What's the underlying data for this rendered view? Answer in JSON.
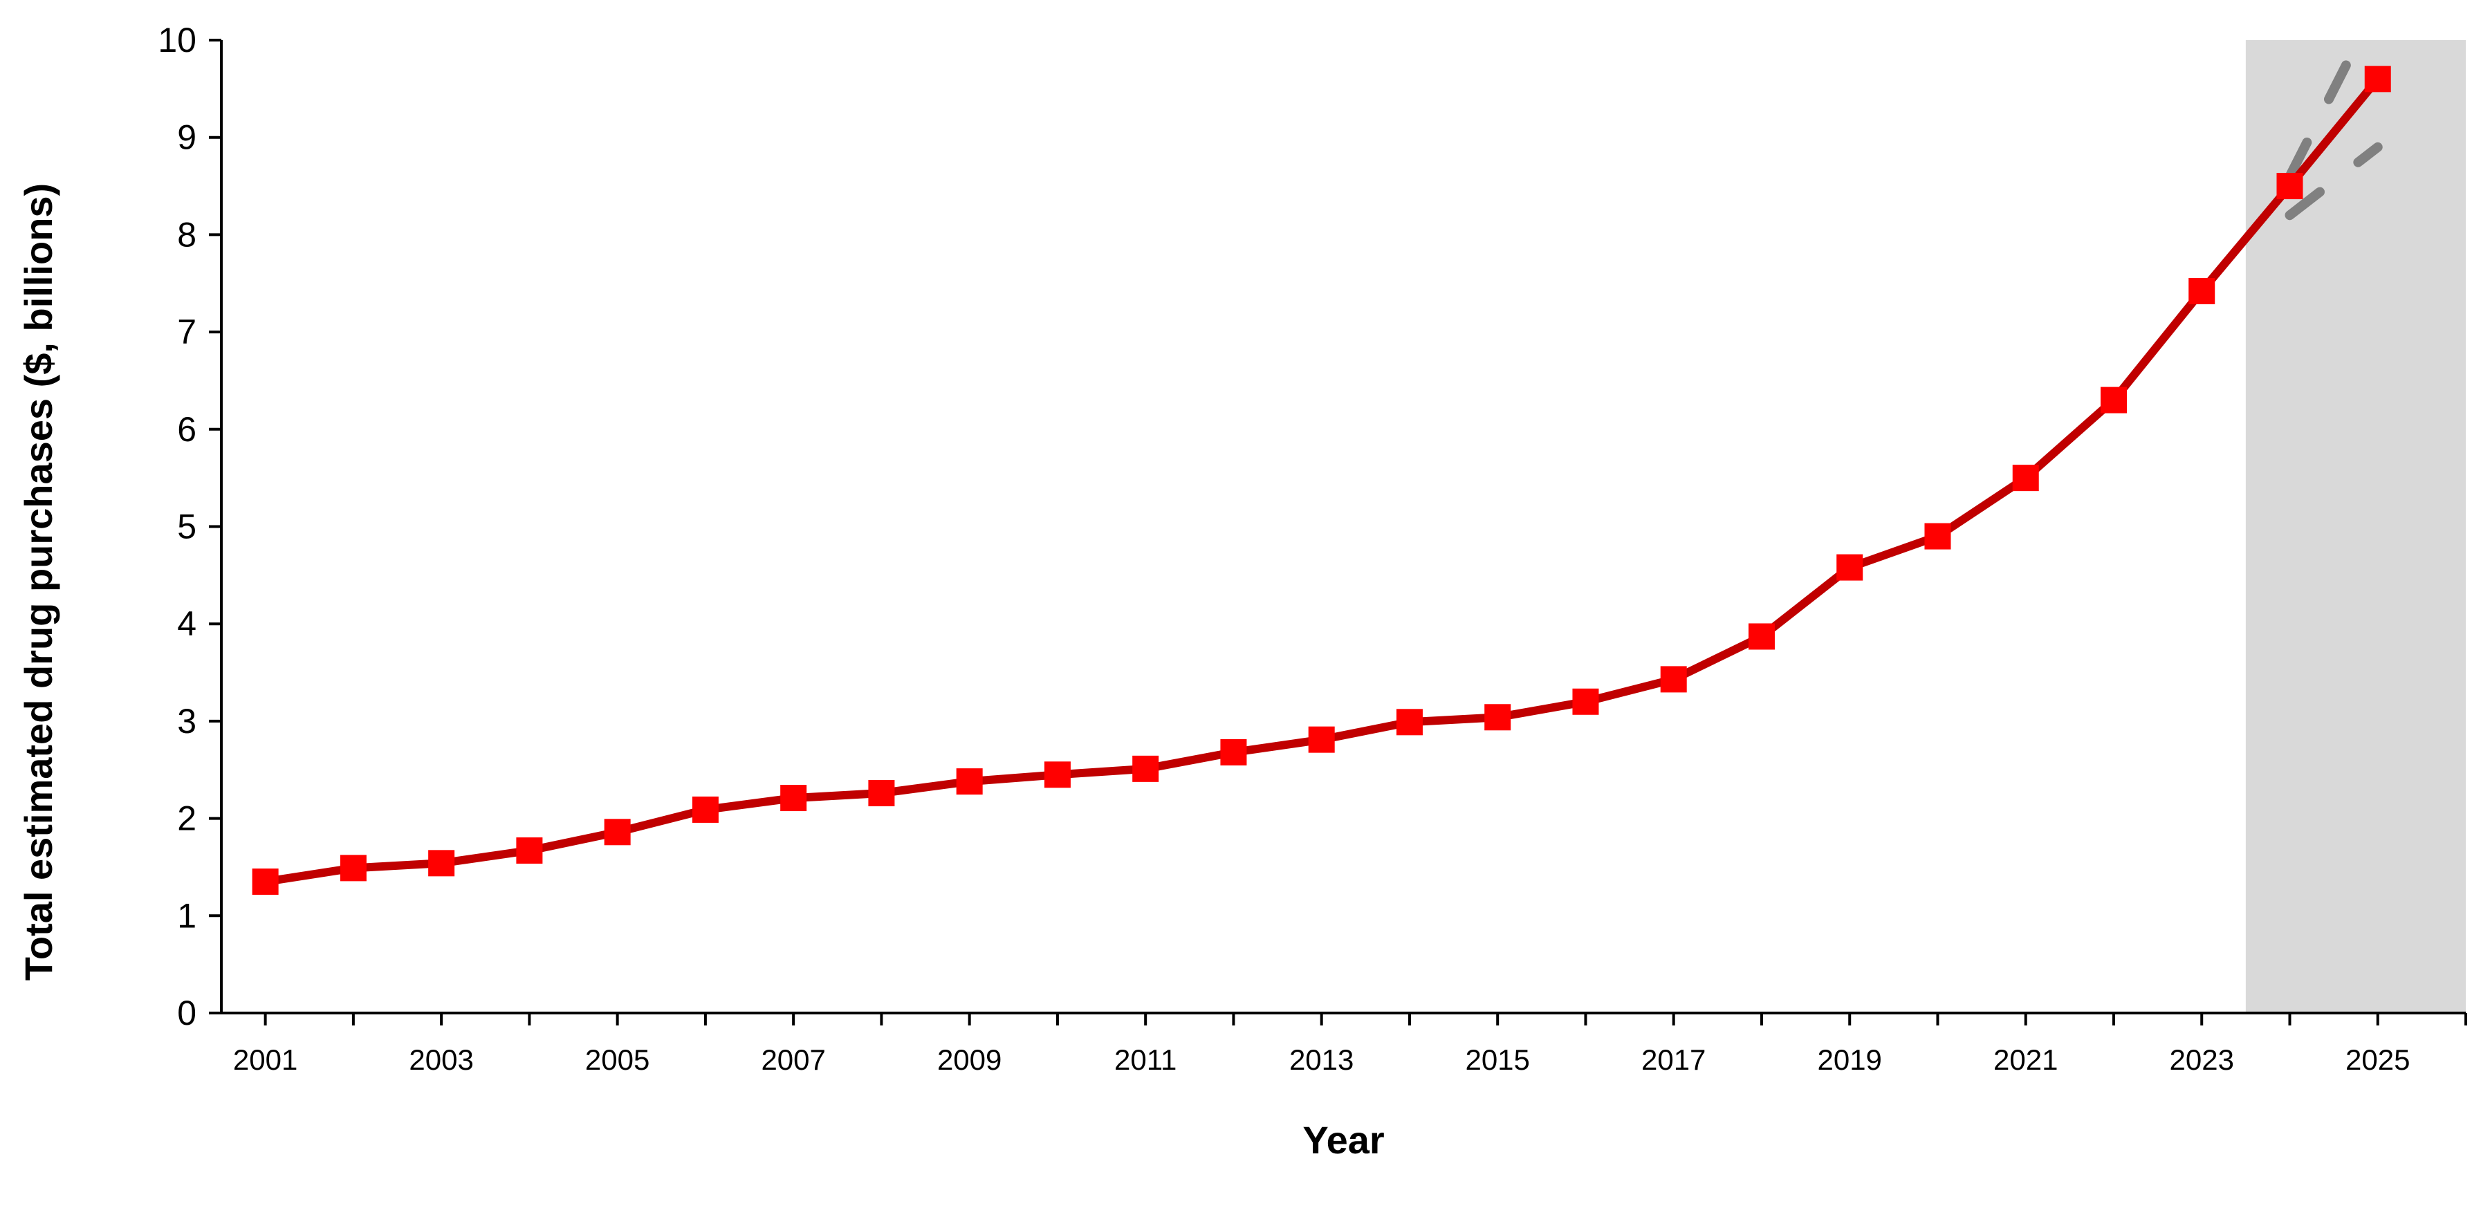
{
  "chart_data": {
    "type": "line",
    "title": "",
    "xlabel": "Year",
    "ylabel": "Total estimated drug purchases ($, billions)",
    "ylim": [
      0,
      10
    ],
    "yticks": [
      0,
      1,
      2,
      3,
      4,
      5,
      6,
      7,
      8,
      9,
      10
    ],
    "x": [
      2001,
      2002,
      2003,
      2004,
      2005,
      2006,
      2007,
      2008,
      2009,
      2010,
      2011,
      2012,
      2013,
      2014,
      2015,
      2016,
      2017,
      2018,
      2019,
      2020,
      2021,
      2022,
      2023,
      2024,
      2025
    ],
    "xtick_labels": [
      "2001",
      "2003",
      "2005",
      "2007",
      "2009",
      "2011",
      "2013",
      "2015",
      "2017",
      "2019",
      "2021",
      "2023",
      "2025"
    ],
    "xtick_values": [
      2001,
      2003,
      2005,
      2007,
      2009,
      2011,
      2013,
      2015,
      2017,
      2019,
      2021,
      2023,
      2025
    ],
    "series": [
      {
        "values": [
          1.35,
          1.49,
          1.54,
          1.67,
          1.86,
          2.09,
          2.21,
          2.26,
          2.38,
          2.45,
          2.51,
          2.68,
          2.81,
          2.99,
          3.04,
          3.2,
          3.43,
          3.87,
          4.58,
          4.9,
          5.5,
          6.3,
          7.42,
          8.5,
          9.6
        ],
        "color": "#c00000",
        "marker_color": "#ff0000",
        "marker": "square"
      }
    ],
    "projection": {
      "shaded_from": 2023.5,
      "shaded_to": 2026,
      "shade_color": "#d9d9d9",
      "bounds_color": "#808080",
      "upper": [
        [
          2024,
          8.6
        ],
        [
          2024.7,
          9.85
        ]
      ],
      "lower": [
        [
          2024,
          8.2
        ],
        [
          2025,
          8.9
        ]
      ]
    },
    "grid": false,
    "legend": "none"
  }
}
